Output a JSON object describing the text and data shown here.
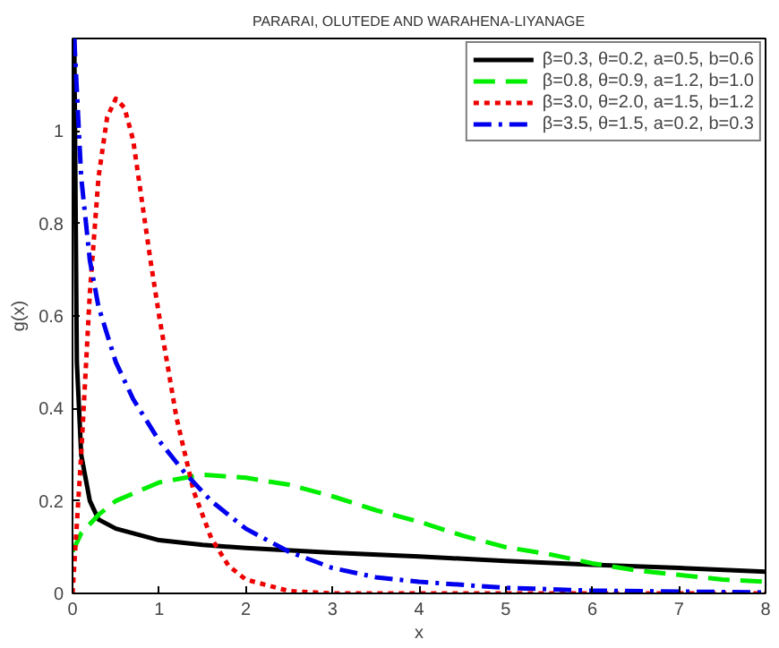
{
  "chart_data": {
    "type": "line",
    "xlabel": "x",
    "ylabel": "g(x)",
    "annotations": [
      "PARARAI, OLUTEDE AND WARAHENA-LIYANAGE"
    ],
    "xlim": [
      0,
      8
    ],
    "ylim": [
      0,
      1.2
    ],
    "xticks": [
      0,
      1,
      2,
      3,
      4,
      5,
      6,
      7,
      8
    ],
    "yticks": [
      0,
      0.2,
      0.4,
      0.6,
      0.8,
      1
    ],
    "grid": false,
    "legend": "top right",
    "marker": "none",
    "series": [
      {
        "name": "β=0.3, θ=0.2, a=0.5, b=0.6",
        "color": "#000000",
        "line_style": "solid",
        "x": [
          0.02,
          0.05,
          0.1,
          0.2,
          0.3,
          0.5,
          1,
          1.5,
          2,
          3,
          4,
          5,
          6,
          7,
          8
        ],
        "values": [
          1.2,
          0.5,
          0.3,
          0.2,
          0.16,
          0.14,
          0.115,
          0.105,
          0.098,
          0.088,
          0.08,
          0.07,
          0.062,
          0.055,
          0.047
        ]
      },
      {
        "name": "β=0.8, θ=0.9, a=1.2, b=1.0",
        "color": "#00ee00",
        "line_style": "dashed",
        "x": [
          0,
          0.1,
          0.3,
          0.5,
          1,
          1.5,
          2,
          2.5,
          3,
          3.5,
          4,
          4.5,
          5,
          5.5,
          6,
          6.5,
          7,
          7.5,
          8
        ],
        "values": [
          0.09,
          0.13,
          0.17,
          0.2,
          0.24,
          0.257,
          0.25,
          0.235,
          0.21,
          0.18,
          0.155,
          0.125,
          0.1,
          0.085,
          0.065,
          0.05,
          0.04,
          0.03,
          0.025
        ]
      },
      {
        "name": "β=3.0, θ=2.0, a=1.5, b=1.2",
        "color": "#ee0000",
        "line_style": "dotted",
        "x": [
          0,
          0.1,
          0.2,
          0.3,
          0.4,
          0.5,
          0.6,
          0.7,
          0.8,
          0.9,
          1.0,
          1.2,
          1.4,
          1.6,
          1.8,
          2.0,
          2.5,
          3,
          8
        ],
        "values": [
          0,
          0.3,
          0.65,
          0.9,
          1.03,
          1.07,
          1.05,
          0.98,
          0.85,
          0.72,
          0.6,
          0.38,
          0.22,
          0.12,
          0.06,
          0.03,
          0.005,
          0,
          0
        ]
      },
      {
        "name": "β=3.5, θ=1.5, a=0.2, b=0.3",
        "color": "#0000ee",
        "line_style": "dashdot",
        "x": [
          0.02,
          0.1,
          0.2,
          0.3,
          0.5,
          0.7,
          1,
          1.3,
          1.6,
          2,
          2.5,
          3,
          3.5,
          4,
          5,
          6,
          8
        ],
        "values": [
          1.2,
          0.9,
          0.72,
          0.62,
          0.5,
          0.42,
          0.33,
          0.26,
          0.2,
          0.14,
          0.09,
          0.055,
          0.035,
          0.025,
          0.012,
          0.006,
          0.002
        ]
      }
    ]
  }
}
